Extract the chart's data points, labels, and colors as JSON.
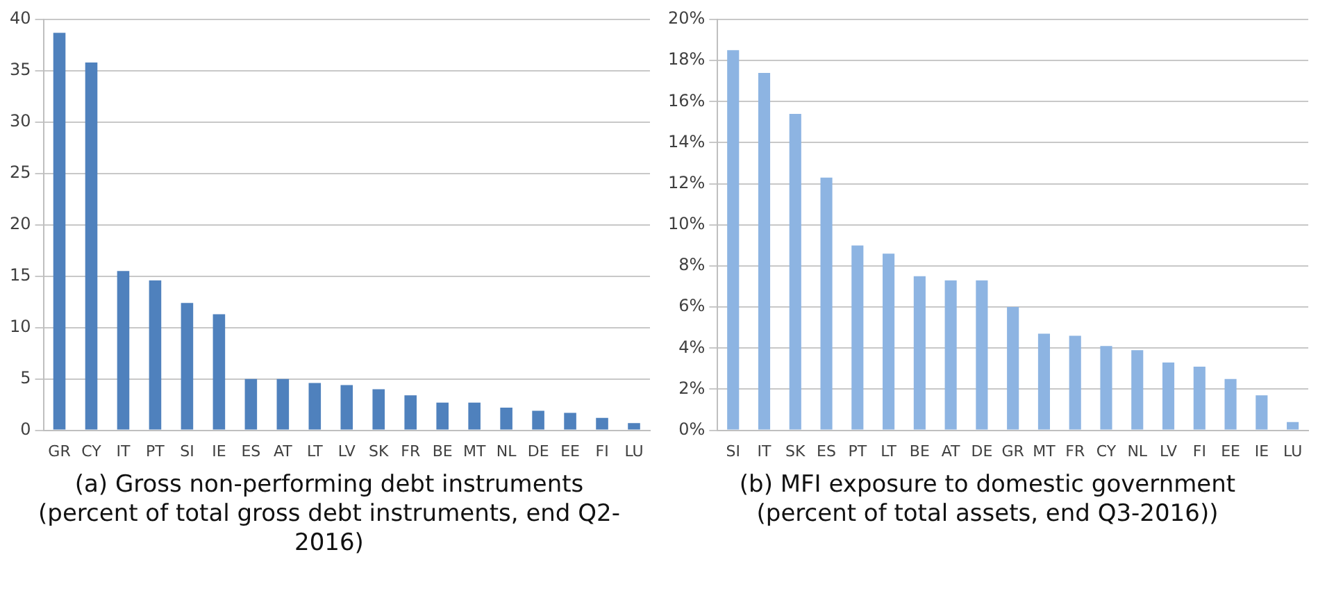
{
  "chart_data": [
    {
      "type": "bar",
      "categories": [
        "GR",
        "CY",
        "IT",
        "PT",
        "SI",
        "IE",
        "ES",
        "AT",
        "LT",
        "LV",
        "SK",
        "FR",
        "BE",
        "MT",
        "NL",
        "DE",
        "EE",
        "FI",
        "LU"
      ],
      "values": [
        38.7,
        35.8,
        15.5,
        14.6,
        12.4,
        11.3,
        5.0,
        5.0,
        4.6,
        4.4,
        4.0,
        3.4,
        2.7,
        2.7,
        2.2,
        1.9,
        1.7,
        1.2,
        0.7
      ],
      "color": "#4f81bd",
      "ylim": [
        0,
        40
      ],
      "yticks": [
        0,
        5,
        10,
        15,
        20,
        25,
        30,
        35,
        40
      ],
      "grid": "y",
      "annotations": [
        "(a) Gross non-performing debt instruments (percent of total gross debt instruments, end Q2-2016)"
      ]
    },
    {
      "type": "bar",
      "categories": [
        "SI",
        "IT",
        "SK",
        "ES",
        "PT",
        "LT",
        "BE",
        "AT",
        "DE",
        "GR",
        "MT",
        "FR",
        "CY",
        "NL",
        "LV",
        "FI",
        "EE",
        "IE",
        "LU"
      ],
      "values": [
        18.5,
        17.4,
        15.4,
        12.3,
        9.0,
        8.6,
        7.5,
        7.3,
        7.3,
        6.0,
        4.7,
        4.6,
        4.1,
        3.9,
        3.3,
        3.1,
        2.5,
        1.7,
        0.4
      ],
      "color": "#8db4e2",
      "ylim": [
        0,
        20
      ],
      "yticks": [
        {
          "value": 0,
          "label": "0%"
        },
        {
          "value": 2,
          "label": "2%"
        },
        {
          "value": 4,
          "label": "4%"
        },
        {
          "value": 6,
          "label": "6%"
        },
        {
          "value": 8,
          "label": "8%"
        },
        {
          "value": 10,
          "label": "10%"
        },
        {
          "value": 12,
          "label": "12%"
        },
        {
          "value": 14,
          "label": "14%"
        },
        {
          "value": 16,
          "label": "16%"
        },
        {
          "value": 18,
          "label": "18%"
        },
        {
          "value": 20,
          "label": "20%"
        }
      ],
      "grid": "y",
      "annotations": [
        "(b) MFI exposure to domestic government (percent of total assets, end Q3-2016))"
      ]
    }
  ]
}
